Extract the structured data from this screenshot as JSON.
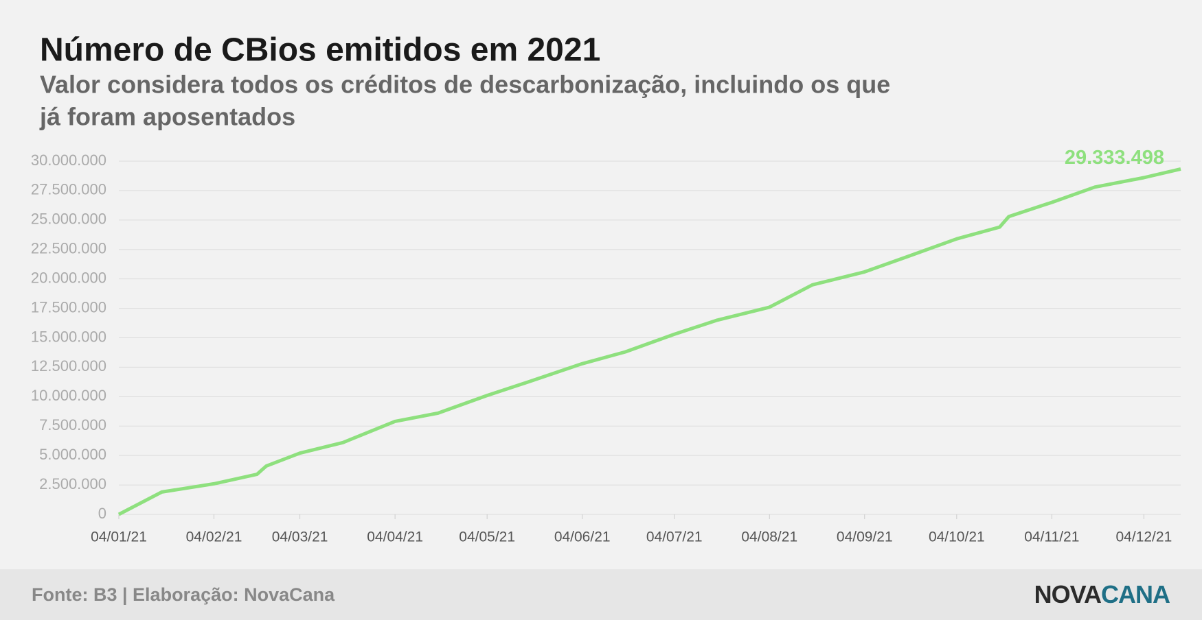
{
  "chart_data": {
    "type": "line",
    "title": "Número de CBios emitidos em 2021",
    "subtitle": [
      "Valor considera todos os créditos de descarbonização, incluindo os que",
      "já foram aposentados"
    ],
    "x": [
      "04/01/21",
      "18/01/21",
      "04/02/21",
      "18/02/21",
      "21/02/21",
      "04/03/21",
      "18/03/21",
      "04/04/21",
      "18/04/21",
      "04/05/21",
      "18/05/21",
      "04/06/21",
      "18/06/21",
      "04/07/21",
      "18/07/21",
      "04/08/21",
      "18/08/21",
      "04/09/21",
      "18/09/21",
      "04/10/21",
      "18/10/21",
      "21/10/21",
      "04/11/21",
      "18/11/21",
      "04/12/21",
      "16/12/21"
    ],
    "series": [
      {
        "name": "CBios",
        "color": "#8ee07e",
        "values": [
          0,
          1900000,
          2600000,
          3400000,
          4100000,
          5200000,
          6100000,
          7900000,
          8600000,
          10100000,
          11300000,
          12800000,
          13800000,
          15300000,
          16500000,
          17600000,
          19500000,
          20600000,
          21900000,
          23400000,
          24400000,
          25300000,
          26500000,
          27800000,
          28600000,
          29333498
        ]
      }
    ],
    "last_value_label": "29.333.498",
    "xlim": [
      "04/01/21",
      "16/12/21"
    ],
    "xticks": [
      "04/01/21",
      "04/02/21",
      "04/03/21",
      "04/04/21",
      "04/05/21",
      "04/06/21",
      "04/07/21",
      "04/08/21",
      "04/09/21",
      "04/10/21",
      "04/11/21",
      "04/12/21"
    ],
    "ylim": [
      0,
      30000000
    ],
    "yticks": [
      0,
      {
        "value": 2500000,
        "label": "2.500.000"
      },
      {
        "value": 5000000,
        "label": "5.000.000"
      },
      {
        "value": 7500000,
        "label": "7.500.000"
      },
      {
        "value": 10000000,
        "label": "10.000.000"
      },
      {
        "value": 12500000,
        "label": "12.500.000"
      },
      {
        "value": 15000000,
        "label": "15.000.000"
      },
      {
        "value": 17500000,
        "label": "17.500.000"
      },
      {
        "value": 20000000,
        "label": "20.000.000"
      },
      {
        "value": 22500000,
        "label": "22.500.000"
      },
      {
        "value": 25000000,
        "label": "25.000.000"
      },
      {
        "value": 27500000,
        "label": "27.500.000"
      },
      {
        "value": 30000000,
        "label": "30.000.000"
      }
    ],
    "grid": true,
    "source": "Fonte: B3 | Elaboração: NovaCana",
    "logo": [
      "NOVA",
      "CANA"
    ]
  }
}
